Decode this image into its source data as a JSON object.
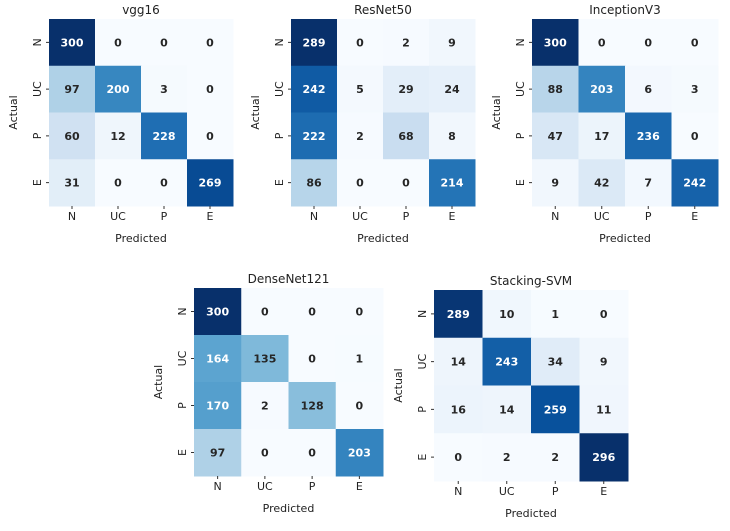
{
  "chart_data": [
    {
      "type": "heatmap",
      "title": "vgg16",
      "xlabel": "Predicted",
      "ylabel": "Actual",
      "x_categories": [
        "N",
        "UC",
        "P",
        "E"
      ],
      "y_categories": [
        "N",
        "UC",
        "P",
        "E"
      ],
      "values": [
        [
          300,
          0,
          0,
          0
        ],
        [
          97,
          200,
          3,
          0
        ],
        [
          60,
          12,
          228,
          0
        ],
        [
          31,
          0,
          0,
          269
        ]
      ]
    },
    {
      "type": "heatmap",
      "title": "ResNet50",
      "xlabel": "Predicted",
      "ylabel": "Actual",
      "x_categories": [
        "N",
        "UC",
        "P",
        "E"
      ],
      "y_categories": [
        "N",
        "UC",
        "P",
        "E"
      ],
      "values": [
        [
          289,
          0,
          2,
          9
        ],
        [
          242,
          5,
          29,
          24
        ],
        [
          222,
          2,
          68,
          8
        ],
        [
          86,
          0,
          0,
          214
        ]
      ]
    },
    {
      "type": "heatmap",
      "title": "InceptionV3",
      "xlabel": "Predicted",
      "ylabel": "Actual",
      "x_categories": [
        "N",
        "UC",
        "P",
        "E"
      ],
      "y_categories": [
        "N",
        "UC",
        "P",
        "E"
      ],
      "values": [
        [
          300,
          0,
          0,
          0
        ],
        [
          88,
          203,
          6,
          3
        ],
        [
          47,
          17,
          236,
          0
        ],
        [
          9,
          42,
          7,
          242
        ]
      ]
    },
    {
      "type": "heatmap",
      "title": "DenseNet121",
      "xlabel": "Predicted",
      "ylabel": "Actual",
      "x_categories": [
        "N",
        "UC",
        "P",
        "E"
      ],
      "y_categories": [
        "N",
        "UC",
        "P",
        "E"
      ],
      "values": [
        [
          300,
          0,
          0,
          0
        ],
        [
          164,
          135,
          0,
          1
        ],
        [
          170,
          2,
          128,
          0
        ],
        [
          97,
          0,
          0,
          203
        ]
      ]
    },
    {
      "type": "heatmap",
      "title": "Stacking-SVM",
      "xlabel": "Predicted",
      "ylabel": "Actual",
      "x_categories": [
        "N",
        "UC",
        "P",
        "E"
      ],
      "y_categories": [
        "N",
        "UC",
        "P",
        "E"
      ],
      "values": [
        [
          289,
          10,
          1,
          0
        ],
        [
          14,
          243,
          34,
          9
        ],
        [
          16,
          14,
          259,
          11
        ],
        [
          0,
          2,
          2,
          296
        ]
      ]
    }
  ],
  "colors": {
    "colormap": [
      "#f7fbff",
      "#deebf7",
      "#c6dbef",
      "#9ecae1",
      "#6baed6",
      "#4292c6",
      "#2171b5",
      "#08519c",
      "#08306b"
    ],
    "text_dark": "#262626",
    "text_light": "#ffffff"
  }
}
